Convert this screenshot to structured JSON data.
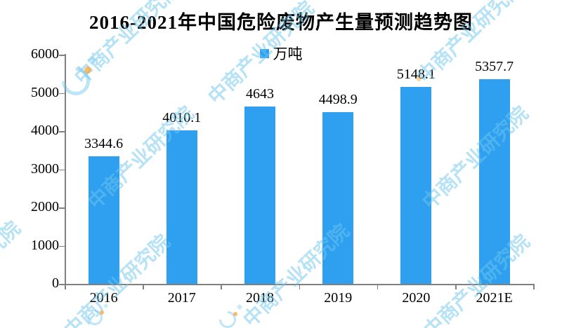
{
  "title": "2016-2021年中国危险废物产生量预测趋势图",
  "legend": {
    "label": "万吨",
    "swatch_color": "#2FA0F0"
  },
  "chart_data": {
    "type": "bar",
    "title": "2016-2021年中国危险废物产生量预测趋势图",
    "unit": "万吨",
    "categories": [
      "2016",
      "2017",
      "2018",
      "2019",
      "2020",
      "2021E"
    ],
    "values": [
      3344.6,
      4010.1,
      4643,
      4498.9,
      5148.1,
      5357.7
    ],
    "data_labels": [
      "3344.6",
      "4010.1",
      "4643",
      "4498.9",
      "5148.1",
      "5357.7"
    ],
    "ylim": [
      0,
      6000
    ],
    "yticks": [
      0,
      1000,
      2000,
      3000,
      4000,
      5000,
      6000
    ],
    "xlabel": "",
    "ylabel": "",
    "grid": false,
    "legend_position": "top-center",
    "bar_color": "#2FA0F0",
    "axis_color": "#808080",
    "text_color": "#000000"
  },
  "watermark": {
    "text": "中商产业研究院",
    "text_color": "#6EC6EB",
    "dot_color": "#F6A638"
  }
}
